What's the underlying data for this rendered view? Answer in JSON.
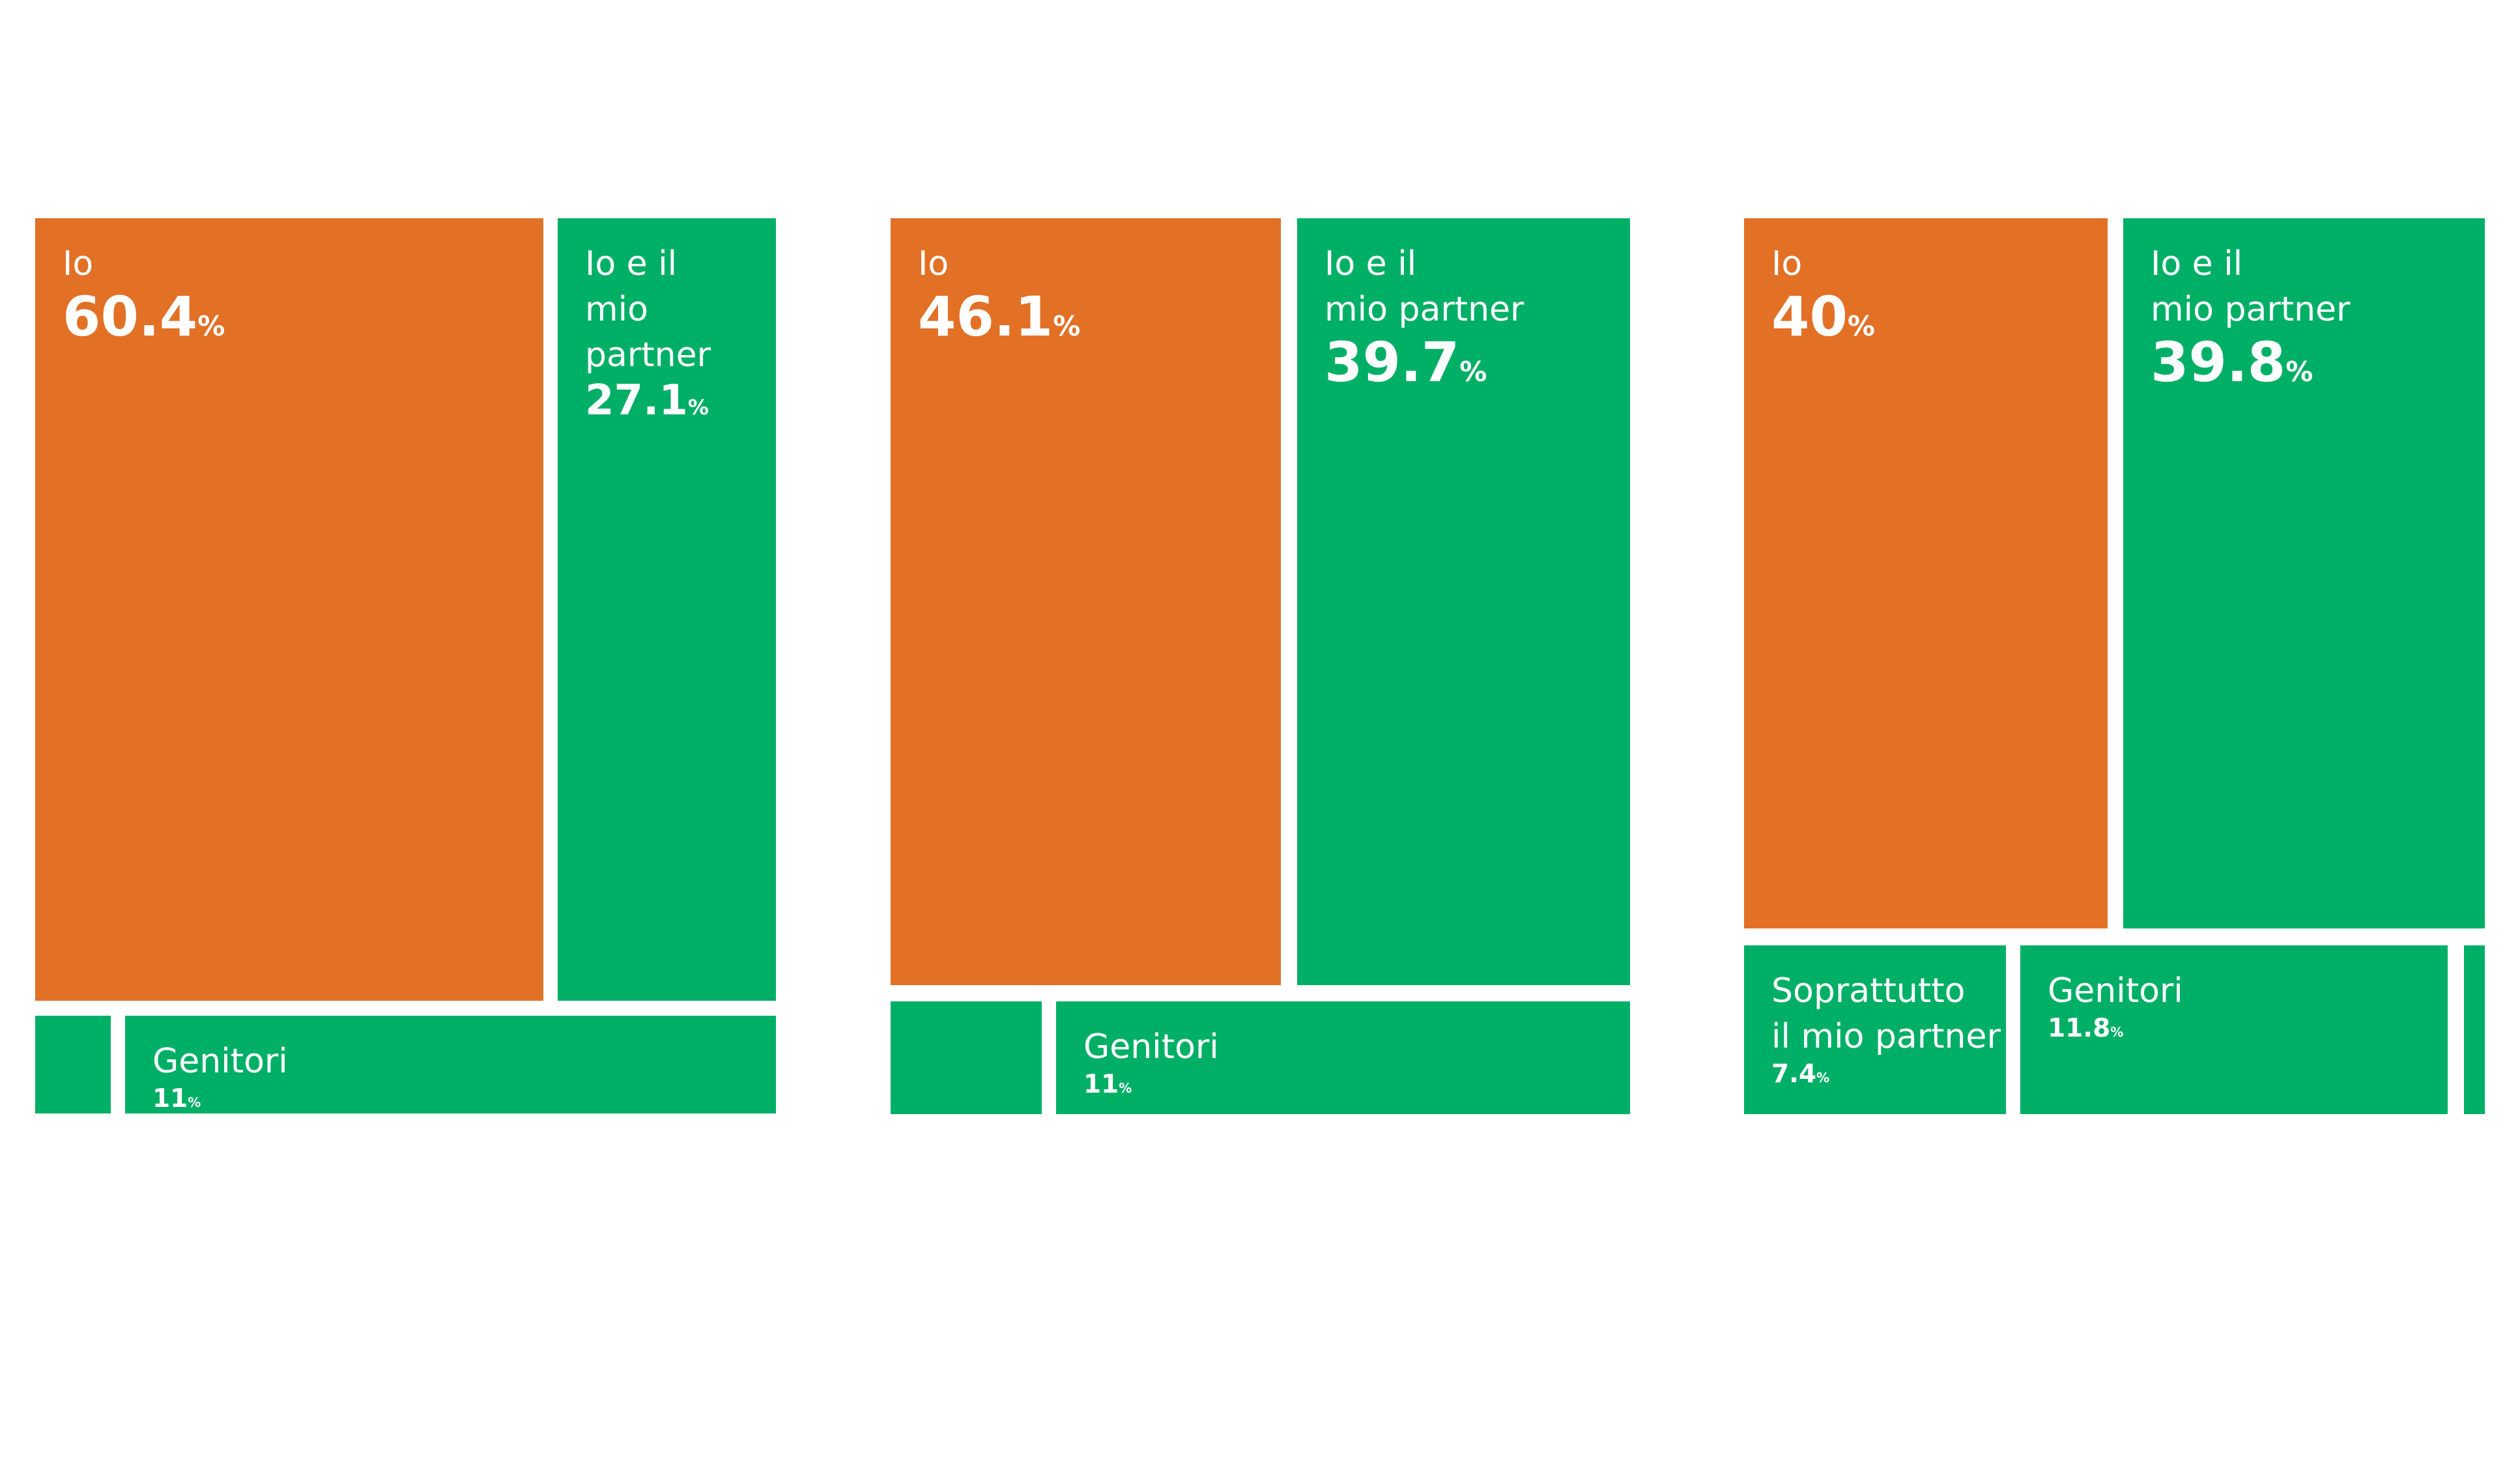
{
  "colors": {
    "orange": "#E27025",
    "green": "#00AF66",
    "background": "#FFFFFF"
  },
  "chart_data": [
    {
      "type": "treemap",
      "cells": [
        {
          "label": "Io",
          "value": 60.4,
          "value_text": "60.4",
          "unit": "%",
          "color": "orange"
        },
        {
          "label": "Io e il\nmio partner",
          "value": 27.1,
          "value_text": "27.1",
          "unit": "%",
          "color": "green"
        },
        {
          "label": "",
          "value": null,
          "value_text": "",
          "unit": "",
          "color": "green"
        },
        {
          "label": "Genitori",
          "value": 11,
          "value_text": "11",
          "unit": "%",
          "color": "green"
        }
      ]
    },
    {
      "type": "treemap",
      "cells": [
        {
          "label": "Io",
          "value": 46.1,
          "value_text": "46.1",
          "unit": "%",
          "color": "orange"
        },
        {
          "label": "Io e il\nmio partner",
          "value": 39.7,
          "value_text": "39.7",
          "unit": "%",
          "color": "green"
        },
        {
          "label": "",
          "value": null,
          "value_text": "",
          "unit": "",
          "color": "green"
        },
        {
          "label": "Genitori",
          "value": 11,
          "value_text": "11",
          "unit": "%",
          "color": "green"
        }
      ]
    },
    {
      "type": "treemap",
      "cells": [
        {
          "label": "Io",
          "value": 40,
          "value_text": "40",
          "unit": "%",
          "color": "orange"
        },
        {
          "label": "Io e il\nmio partner",
          "value": 39.8,
          "value_text": "39.8",
          "unit": "%",
          "color": "green"
        },
        {
          "label": "Soprattutto\nil mio partner",
          "value": 7.4,
          "value_text": "7.4",
          "unit": "%",
          "color": "green"
        },
        {
          "label": "Genitori",
          "value": 11.8,
          "value_text": "11.8",
          "unit": "%",
          "color": "green"
        },
        {
          "label": "",
          "value": null,
          "value_text": "",
          "unit": "",
          "color": "green"
        }
      ]
    }
  ]
}
